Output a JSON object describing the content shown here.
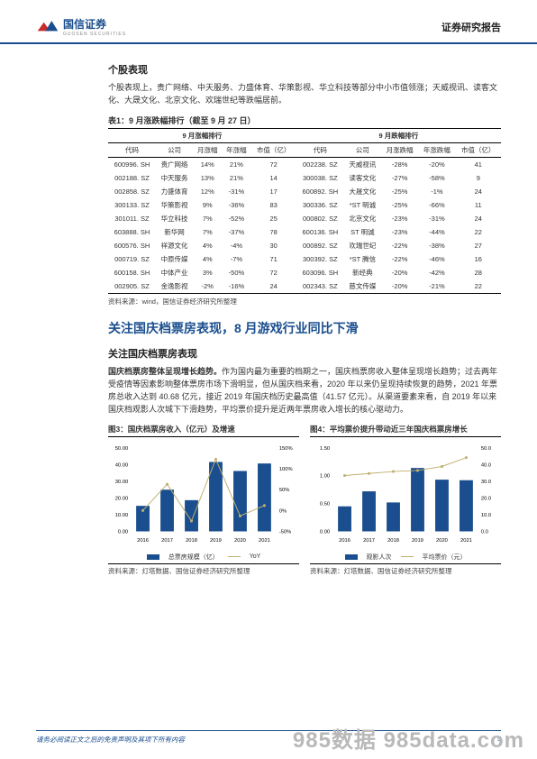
{
  "header": {
    "brand": "国信证券",
    "brand_sub": "GUOSEN SECURITIES",
    "report_type": "证券研究报告",
    "logo_red": "#c72b2a",
    "logo_blue": "#1a4e8e"
  },
  "section1": {
    "title": "个股表现",
    "para": "个股表现上，贵广网络、中天服务、力盛体育、华策影视、华立科技等部分中小市值领涨；天威视讯、读客文化、大晟文化、北京文化、欢瑞世纪等跌幅居前。"
  },
  "table1": {
    "title": "表1：9 月涨跌幅排行（截至 9 月 27 日）",
    "group_left": "9 月涨幅排行",
    "group_right": "9 月跌幅排行",
    "cols": [
      "代码",
      "公司",
      "月涨幅",
      "年涨幅",
      "市值（亿）",
      "代码",
      "公司",
      "月涨跌幅",
      "年涨跌幅",
      "市值（亿）"
    ],
    "rows": [
      [
        "600996. SH",
        "贵广网络",
        "14%",
        "21%",
        "72",
        "002238. SZ",
        "天威视讯",
        "-28%",
        "-20%",
        "41"
      ],
      [
        "002188. SZ",
        "中天服务",
        "13%",
        "21%",
        "14",
        "300038. SZ",
        "读客文化",
        "-27%",
        "-58%",
        "9"
      ],
      [
        "002858. SZ",
        "力盛体育",
        "12%",
        "-31%",
        "17",
        "600892. SH",
        "大晟文化",
        "-25%",
        "-1%",
        "24"
      ],
      [
        "300133. SZ",
        "华策影视",
        "9%",
        "-36%",
        "83",
        "300336. SZ",
        "*ST 明诚",
        "-25%",
        "-66%",
        "11"
      ],
      [
        "301011. SZ",
        "华立科技",
        "7%",
        "-52%",
        "25",
        "000802. SZ",
        "北京文化",
        "-23%",
        "-31%",
        "24"
      ],
      [
        "603888. SH",
        "新华网",
        "7%",
        "-37%",
        "78",
        "600136. SH",
        "ST 明诚",
        "-23%",
        "-44%",
        "22"
      ],
      [
        "600576. SH",
        "祥源文化",
        "4%",
        "-4%",
        "30",
        "000892. SZ",
        "欢瑞世纪",
        "-22%",
        "-38%",
        "27"
      ],
      [
        "000719. SZ",
        "中原传媒",
        "4%",
        "-7%",
        "71",
        "300392. SZ",
        "*ST 腾信",
        "-22%",
        "-46%",
        "16"
      ],
      [
        "600158. SH",
        "中体产业",
        "3%",
        "-50%",
        "72",
        "603096. SH",
        "新经典",
        "-20%",
        "-42%",
        "28"
      ],
      [
        "002905. SZ",
        "金逸影视",
        "-2%",
        "-16%",
        "24",
        "002343. SZ",
        "慈文传媒",
        "-20%",
        "-21%",
        "22"
      ]
    ],
    "source": "资料来源：wind，国信证券经济研究所整理"
  },
  "section2": {
    "big_title": "关注国庆档票房表现，8 月游戏行业同比下滑",
    "sub_title": "关注国庆档票房表现",
    "para_bold": "国庆档票房整体呈现增长趋势。",
    "para_rest": "作为国内最为重要的档期之一，国庆档票房收入整体呈现增长趋势；过去两年受疫情等因素影响整体票房市场下滑明显，但从国庆档来看，2020 年以来仍呈现持续恢复的趋势，2021 年票房总收入达到 40.68 亿元，接近 2019 年国庆档历史最高值（41.57 亿元）。从渠道要素来看，自 2019 年以来国庆档观影人次城下下滑趋势，平均票价提升是近两年票房收入增长的核心驱动力。"
  },
  "chart3": {
    "title": "图3：国庆档票房收入（亿元）及增速",
    "type": "bar+line",
    "years": [
      "2016",
      "2017",
      "2018",
      "2019",
      "2020",
      "2021"
    ],
    "bar_values": [
      15.3,
      25.0,
      18.7,
      41.6,
      36.2,
      40.7
    ],
    "line_values": [
      0,
      63,
      -25,
      123,
      -13,
      12
    ],
    "bar_color": "#1a4e8e",
    "line_color": "#c0b070",
    "y1_min": 0,
    "y1_max": 50,
    "y1_step": 10,
    "y2_min": -50,
    "y2_max": 150,
    "y2_step": 50,
    "legend_bar": "总票房规模（亿）",
    "legend_line": "YoY",
    "source": "资料来源：灯塔数据、国信证券经济研究所整理"
  },
  "chart4": {
    "title": "图4：平均票价提升带动近三年国庆档票房增长",
    "type": "bar+line",
    "years": [
      "2016",
      "2017",
      "2018",
      "2019",
      "2020",
      "2021"
    ],
    "bar_values": [
      0.45,
      0.72,
      0.52,
      1.14,
      0.93,
      0.92
    ],
    "line_values": [
      33.5,
      34.7,
      35.9,
      36.5,
      38.9,
      44.2
    ],
    "bar_color": "#1a4e8e",
    "line_color": "#c0b070",
    "y1_min": 0,
    "y1_max": 1.5,
    "y1_step": 0.5,
    "y2_min": 0,
    "y2_max": 50,
    "y2_step": 10,
    "legend_bar": "观影人次",
    "legend_line": "平均票价（元）",
    "source": "资料来源：灯塔数据、国信证券经济研究所整理"
  },
  "footer": {
    "disclaimer": "请务必阅读正文之后的免责声明及其项下所有内容",
    "page": "5"
  },
  "watermark": "985数据  985data.com"
}
